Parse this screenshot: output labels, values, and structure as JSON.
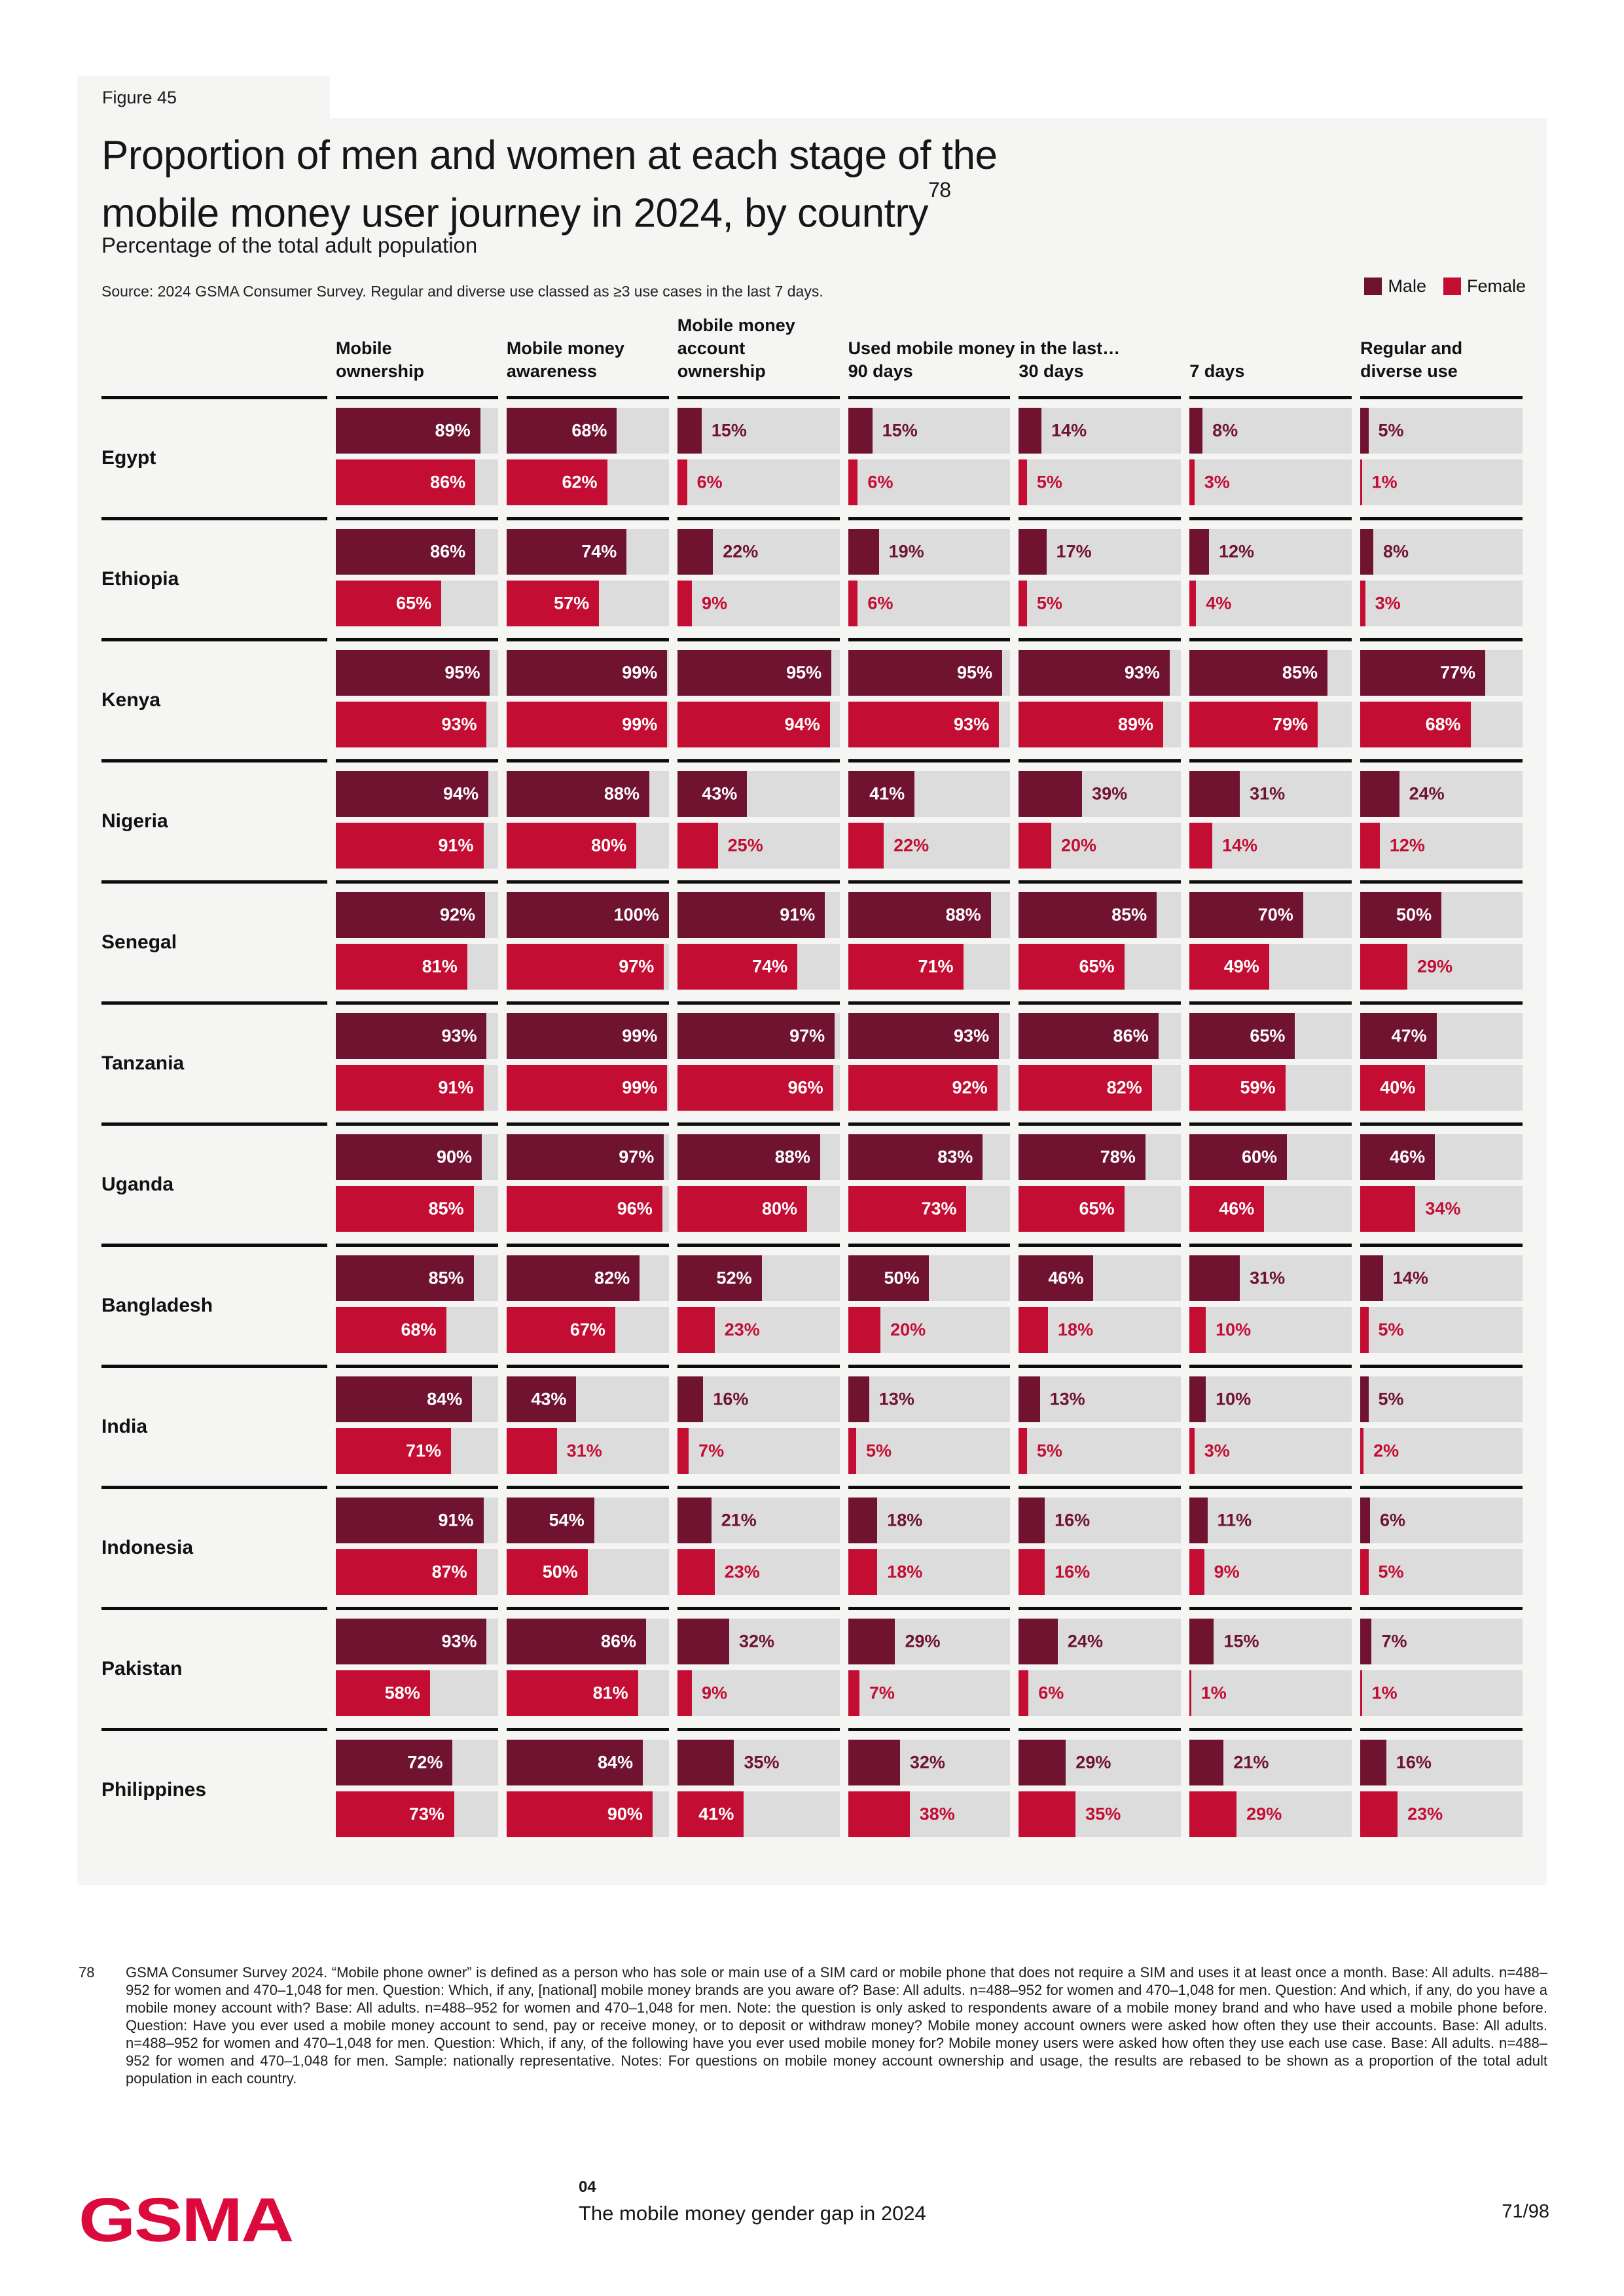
{
  "page": {
    "figure_label": "Figure 45",
    "title_lines": [
      "Proportion of men and women at each stage of the",
      "mobile money user journey in 2024, by country"
    ],
    "title_superscript": "78",
    "subtitle": "Percentage of the total adult population",
    "source": "Source: 2024 GSMA Consumer Survey. Regular and diverse use classed as ≥3 use cases in the last 7 days.",
    "legend": {
      "male": "Male",
      "female": "Female"
    },
    "columns": {
      "c1": [
        "Mobile",
        "ownership"
      ],
      "c2": [
        "Mobile money",
        "awareness"
      ],
      "c3": [
        "Mobile money",
        "account",
        "ownership"
      ],
      "used_group": "Used mobile money in the last…",
      "c4": "90 days",
      "c5": "30 days",
      "c6": "7 days",
      "c7": [
        "Regular and",
        "diverse use"
      ]
    },
    "footnote": {
      "marker": "78",
      "text": "GSMA Consumer Survey 2024. “Mobile phone owner” is defined as a person who has sole or main use of a SIM card or mobile phone that does not require a SIM and uses it at least once a month. Base: All adults. n=488–952 for women and 470–1,048 for men. Question: Which, if any, [national] mobile money brands are you aware of? Base: All adults. n=488–952 for women and 470–1,048 for men. Question: And which, if any, do you have a mobile money account with? Base: All adults. n=488–952 for women and 470–1,048 for men. Note: the question is only asked to respondents aware of a mobile money brand and who have used a mobile phone before. Question: Have you ever used a mobile money account to send, pay or receive money, or to deposit or withdraw money? Mobile money account owners were asked how often they use their accounts. Base: All adults. n=488–952 for women and 470–1,048 for men. Question: Which, if any, of the following have you ever used mobile money for? Mobile money users were asked how often they use each use case. Base: All adults. n=488–952 for women and 470–1,048 for men. Sample: nationally representative. Notes: For questions on mobile money account ownership and usage, the results are rebased to be shown as a proportion of the total adult population in each country."
    },
    "footer": {
      "logo": "GSMA",
      "chapter_number": "04",
      "chapter_title": "The mobile money gender gap in 2024",
      "page_number": "71/98"
    }
  },
  "colors": {
    "male": "#701331",
    "female": "#C40D33",
    "track": "#DCDCDC",
    "panel_background": "#F5F5F4",
    "separator": "#0D0D0D",
    "logo_red": "#DC0A3C"
  },
  "chart_data": {
    "type": "bar",
    "orientation": "horizontal",
    "title": "Proportion of men and women at each stage of the mobile money user journey in 2024, by country",
    "subtitle": "Percentage of the total adult population",
    "unit": "%",
    "xlim": [
      0,
      100
    ],
    "legend": [
      "Male",
      "Female"
    ],
    "legend_position": "top-right",
    "stages": [
      "Mobile ownership",
      "Mobile money awareness",
      "Mobile money account ownership",
      "Used mobile money in the last 90 days",
      "Used mobile money in the last 30 days",
      "Used mobile money in the last 7 days",
      "Regular and diverse use"
    ],
    "countries": [
      {
        "name": "Egypt",
        "male": [
          89,
          68,
          15,
          15,
          14,
          8,
          5
        ],
        "female": [
          86,
          62,
          6,
          6,
          5,
          3,
          1
        ]
      },
      {
        "name": "Ethiopia",
        "male": [
          86,
          74,
          22,
          19,
          17,
          12,
          8
        ],
        "female": [
          65,
          57,
          9,
          6,
          5,
          4,
          3
        ]
      },
      {
        "name": "Kenya",
        "male": [
          95,
          99,
          95,
          95,
          93,
          85,
          77
        ],
        "female": [
          93,
          99,
          94,
          93,
          89,
          79,
          68
        ]
      },
      {
        "name": "Nigeria",
        "male": [
          94,
          88,
          43,
          41,
          39,
          31,
          24
        ],
        "female": [
          91,
          80,
          25,
          22,
          20,
          14,
          12
        ]
      },
      {
        "name": "Senegal",
        "male": [
          92,
          100,
          91,
          88,
          85,
          70,
          50
        ],
        "female": [
          81,
          97,
          74,
          71,
          65,
          49,
          29
        ]
      },
      {
        "name": "Tanzania",
        "male": [
          93,
          99,
          97,
          93,
          86,
          65,
          47
        ],
        "female": [
          91,
          99,
          96,
          92,
          82,
          59,
          40
        ]
      },
      {
        "name": "Uganda",
        "male": [
          90,
          97,
          88,
          83,
          78,
          60,
          46
        ],
        "female": [
          85,
          96,
          80,
          73,
          65,
          46,
          34
        ]
      },
      {
        "name": "Bangladesh",
        "male": [
          85,
          82,
          52,
          50,
          46,
          31,
          14
        ],
        "female": [
          68,
          67,
          23,
          20,
          18,
          10,
          5
        ]
      },
      {
        "name": "India",
        "male": [
          84,
          43,
          16,
          13,
          13,
          10,
          5
        ],
        "female": [
          71,
          31,
          7,
          5,
          5,
          3,
          2
        ]
      },
      {
        "name": "Indonesia",
        "male": [
          91,
          54,
          21,
          18,
          16,
          11,
          6
        ],
        "female": [
          87,
          50,
          23,
          18,
          16,
          9,
          5
        ]
      },
      {
        "name": "Pakistan",
        "male": [
          93,
          86,
          32,
          29,
          24,
          15,
          7
        ],
        "female": [
          58,
          81,
          9,
          7,
          6,
          1,
          1
        ]
      },
      {
        "name": "Philippines",
        "male": [
          72,
          84,
          35,
          32,
          29,
          21,
          16
        ],
        "female": [
          73,
          90,
          41,
          38,
          35,
          29,
          23
        ]
      }
    ]
  }
}
